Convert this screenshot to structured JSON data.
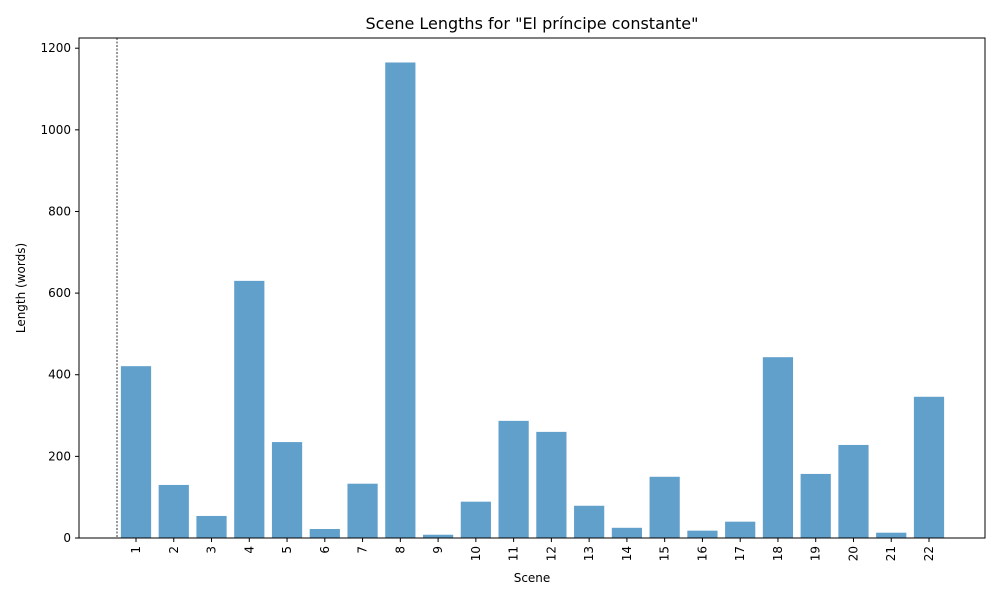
{
  "chart_data": {
    "type": "bar",
    "title": "Scene Lengths for \"El príncipe constante\"",
    "xlabel": "Scene",
    "ylabel": "Length (words)",
    "categories": [
      "1",
      "2",
      "3",
      "4",
      "5",
      "6",
      "7",
      "8",
      "9",
      "10",
      "11",
      "12",
      "13",
      "14",
      "15",
      "16",
      "17",
      "18",
      "19",
      "20",
      "21",
      "22"
    ],
    "values": [
      421,
      130,
      54,
      630,
      235,
      22,
      133,
      1165,
      8,
      89,
      287,
      260,
      79,
      25,
      150,
      18,
      40,
      443,
      157,
      228,
      13,
      346
    ],
    "ylim": [
      0,
      1225
    ],
    "yticks": [
      0,
      200,
      400,
      600,
      800,
      1000,
      1200
    ],
    "bar_color": "#62a0cc",
    "grid": false,
    "vertical_reference_line": true
  }
}
